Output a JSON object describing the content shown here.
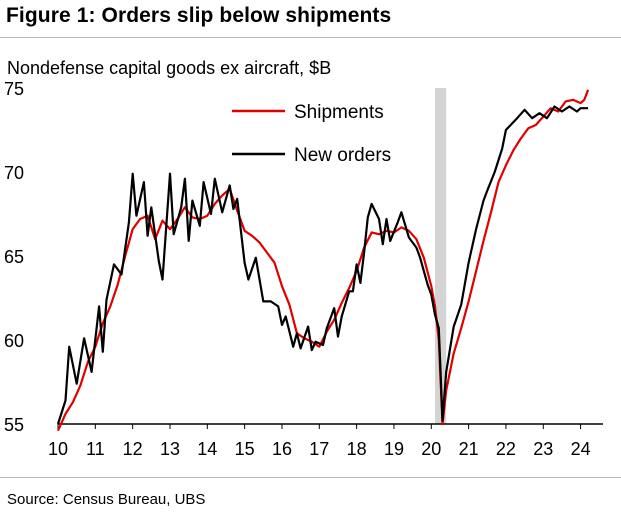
{
  "title": "Figure 1: Orders slip below shipments",
  "source": "Source: Census Bureau, UBS",
  "chart_data": {
    "type": "line",
    "subtitle": "Nondefense capital goods ex aircraft, $B",
    "ylim": [
      55,
      75
    ],
    "yticks": [
      75,
      70,
      65,
      60,
      55
    ],
    "xlim": [
      2010,
      2024.6
    ],
    "xticks": [
      "10",
      "11",
      "12",
      "13",
      "14",
      "15",
      "16",
      "17",
      "18",
      "19",
      "20",
      "21",
      "22",
      "23",
      "24"
    ],
    "shaded_period": [
      2020.1,
      2020.4
    ],
    "legend_position": "top-center",
    "series": [
      {
        "name": "Shipments",
        "color": "#e00000",
        "points": [
          [
            2010.0,
            54.6
          ],
          [
            2010.2,
            55.6
          ],
          [
            2010.4,
            56.3
          ],
          [
            2010.6,
            57.3
          ],
          [
            2010.8,
            58.7
          ],
          [
            2011.0,
            59.6
          ],
          [
            2011.2,
            61.0
          ],
          [
            2011.4,
            62.0
          ],
          [
            2011.6,
            63.3
          ],
          [
            2011.8,
            65.0
          ],
          [
            2012.0,
            66.6
          ],
          [
            2012.2,
            67.2
          ],
          [
            2012.4,
            67.4
          ],
          [
            2012.6,
            66.0
          ],
          [
            2012.8,
            67.1
          ],
          [
            2013.0,
            66.6
          ],
          [
            2013.2,
            67.2
          ],
          [
            2013.4,
            67.9
          ],
          [
            2013.6,
            67.3
          ],
          [
            2013.8,
            67.2
          ],
          [
            2014.0,
            67.4
          ],
          [
            2014.2,
            68.1
          ],
          [
            2014.4,
            68.6
          ],
          [
            2014.6,
            69.0
          ],
          [
            2014.8,
            67.7
          ],
          [
            2015.0,
            66.5
          ],
          [
            2015.2,
            66.2
          ],
          [
            2015.4,
            65.8
          ],
          [
            2015.6,
            65.2
          ],
          [
            2015.8,
            64.6
          ],
          [
            2016.0,
            63.2
          ],
          [
            2016.2,
            62.1
          ],
          [
            2016.4,
            60.4
          ],
          [
            2016.6,
            60.1
          ],
          [
            2016.8,
            59.9
          ],
          [
            2017.0,
            59.6
          ],
          [
            2017.2,
            60.5
          ],
          [
            2017.4,
            61.2
          ],
          [
            2017.6,
            62.2
          ],
          [
            2017.8,
            63.1
          ],
          [
            2018.0,
            64.1
          ],
          [
            2018.2,
            65.5
          ],
          [
            2018.4,
            66.4
          ],
          [
            2018.6,
            66.3
          ],
          [
            2018.8,
            66.5
          ],
          [
            2019.0,
            66.4
          ],
          [
            2019.2,
            66.7
          ],
          [
            2019.4,
            66.5
          ],
          [
            2019.6,
            66.0
          ],
          [
            2019.8,
            64.9
          ],
          [
            2020.0,
            63.2
          ],
          [
            2020.1,
            62.0
          ],
          [
            2020.2,
            60.0
          ],
          [
            2020.3,
            55.0
          ],
          [
            2020.4,
            57.0
          ],
          [
            2020.6,
            59.2
          ],
          [
            2020.8,
            60.7
          ],
          [
            2021.0,
            62.3
          ],
          [
            2021.2,
            64.1
          ],
          [
            2021.4,
            65.9
          ],
          [
            2021.6,
            67.6
          ],
          [
            2021.8,
            69.4
          ],
          [
            2022.0,
            70.4
          ],
          [
            2022.2,
            71.3
          ],
          [
            2022.4,
            72.0
          ],
          [
            2022.6,
            72.6
          ],
          [
            2022.8,
            72.8
          ],
          [
            2023.0,
            73.3
          ],
          [
            2023.2,
            73.8
          ],
          [
            2023.4,
            73.6
          ],
          [
            2023.6,
            74.2
          ],
          [
            2023.8,
            74.3
          ],
          [
            2024.0,
            74.1
          ],
          [
            2024.1,
            74.3
          ],
          [
            2024.2,
            74.9
          ]
        ]
      },
      {
        "name": "New orders",
        "color": "#000000",
        "points": [
          [
            2010.0,
            55.0
          ],
          [
            2010.2,
            56.4
          ],
          [
            2010.3,
            59.6
          ],
          [
            2010.5,
            57.4
          ],
          [
            2010.7,
            60.1
          ],
          [
            2010.9,
            58.1
          ],
          [
            2011.1,
            62.0
          ],
          [
            2011.2,
            59.3
          ],
          [
            2011.3,
            62.4
          ],
          [
            2011.5,
            64.5
          ],
          [
            2011.7,
            63.9
          ],
          [
            2011.9,
            67.0
          ],
          [
            2012.0,
            69.9
          ],
          [
            2012.1,
            67.4
          ],
          [
            2012.3,
            69.4
          ],
          [
            2012.4,
            66.2
          ],
          [
            2012.5,
            67.9
          ],
          [
            2012.7,
            64.7
          ],
          [
            2012.8,
            63.6
          ],
          [
            2013.0,
            69.9
          ],
          [
            2013.1,
            66.3
          ],
          [
            2013.3,
            67.9
          ],
          [
            2013.4,
            69.6
          ],
          [
            2013.5,
            65.9
          ],
          [
            2013.6,
            68.3
          ],
          [
            2013.8,
            66.8
          ],
          [
            2013.9,
            69.4
          ],
          [
            2014.1,
            67.5
          ],
          [
            2014.2,
            69.6
          ],
          [
            2014.4,
            67.6
          ],
          [
            2014.6,
            69.2
          ],
          [
            2014.7,
            67.8
          ],
          [
            2014.8,
            68.4
          ],
          [
            2015.0,
            64.6
          ],
          [
            2015.1,
            63.6
          ],
          [
            2015.3,
            64.9
          ],
          [
            2015.5,
            62.3
          ],
          [
            2015.7,
            62.3
          ],
          [
            2015.9,
            62.0
          ],
          [
            2016.0,
            60.9
          ],
          [
            2016.1,
            61.4
          ],
          [
            2016.3,
            59.6
          ],
          [
            2016.4,
            60.4
          ],
          [
            2016.5,
            59.5
          ],
          [
            2016.7,
            60.8
          ],
          [
            2016.8,
            59.4
          ],
          [
            2016.9,
            59.9
          ],
          [
            2017.1,
            59.7
          ],
          [
            2017.2,
            60.7
          ],
          [
            2017.4,
            61.9
          ],
          [
            2017.5,
            60.2
          ],
          [
            2017.6,
            61.4
          ],
          [
            2017.8,
            62.9
          ],
          [
            2017.9,
            62.9
          ],
          [
            2018.0,
            64.5
          ],
          [
            2018.1,
            63.4
          ],
          [
            2018.2,
            65.2
          ],
          [
            2018.3,
            67.3
          ],
          [
            2018.4,
            68.1
          ],
          [
            2018.6,
            67.2
          ],
          [
            2018.7,
            65.7
          ],
          [
            2018.8,
            67.2
          ],
          [
            2018.9,
            65.9
          ],
          [
            2019.1,
            67.0
          ],
          [
            2019.2,
            67.6
          ],
          [
            2019.4,
            66.1
          ],
          [
            2019.6,
            65.5
          ],
          [
            2019.7,
            64.9
          ],
          [
            2019.9,
            63.3
          ],
          [
            2020.0,
            62.7
          ],
          [
            2020.1,
            61.5
          ],
          [
            2020.2,
            60.7
          ],
          [
            2020.3,
            55.2
          ],
          [
            2020.4,
            58.1
          ],
          [
            2020.6,
            60.8
          ],
          [
            2020.8,
            62.1
          ],
          [
            2021.0,
            64.6
          ],
          [
            2021.2,
            66.6
          ],
          [
            2021.4,
            68.3
          ],
          [
            2021.5,
            68.9
          ],
          [
            2021.7,
            70.0
          ],
          [
            2021.9,
            71.4
          ],
          [
            2022.0,
            72.5
          ],
          [
            2022.3,
            73.2
          ],
          [
            2022.5,
            73.7
          ],
          [
            2022.7,
            73.2
          ],
          [
            2022.9,
            73.5
          ],
          [
            2023.1,
            73.2
          ],
          [
            2023.3,
            73.9
          ],
          [
            2023.5,
            73.6
          ],
          [
            2023.7,
            73.9
          ],
          [
            2023.9,
            73.6
          ],
          [
            2024.0,
            73.8
          ],
          [
            2024.2,
            73.8
          ]
        ]
      }
    ]
  }
}
